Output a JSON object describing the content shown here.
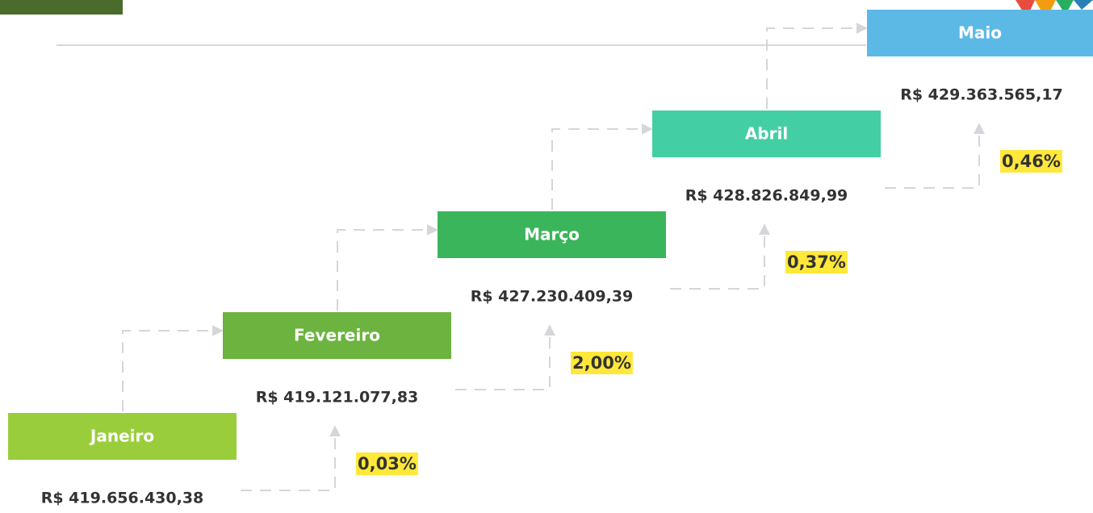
{
  "steps": [
    {
      "month": "Janeiro",
      "amount": "R$ 419.656.430,38",
      "change": "0,03%"
    },
    {
      "month": "Fevereiro",
      "amount": "R$ 419.121.077,83",
      "change": "2,00%"
    },
    {
      "month": "Março",
      "amount": "R$ 427.230.409,39",
      "change": "0,37%"
    },
    {
      "month": "Abril",
      "amount": "R$ 428.826.849,99",
      "change": "0,46%"
    },
    {
      "month": "Maio",
      "amount": "R$ 429.363.565,17"
    }
  ]
}
